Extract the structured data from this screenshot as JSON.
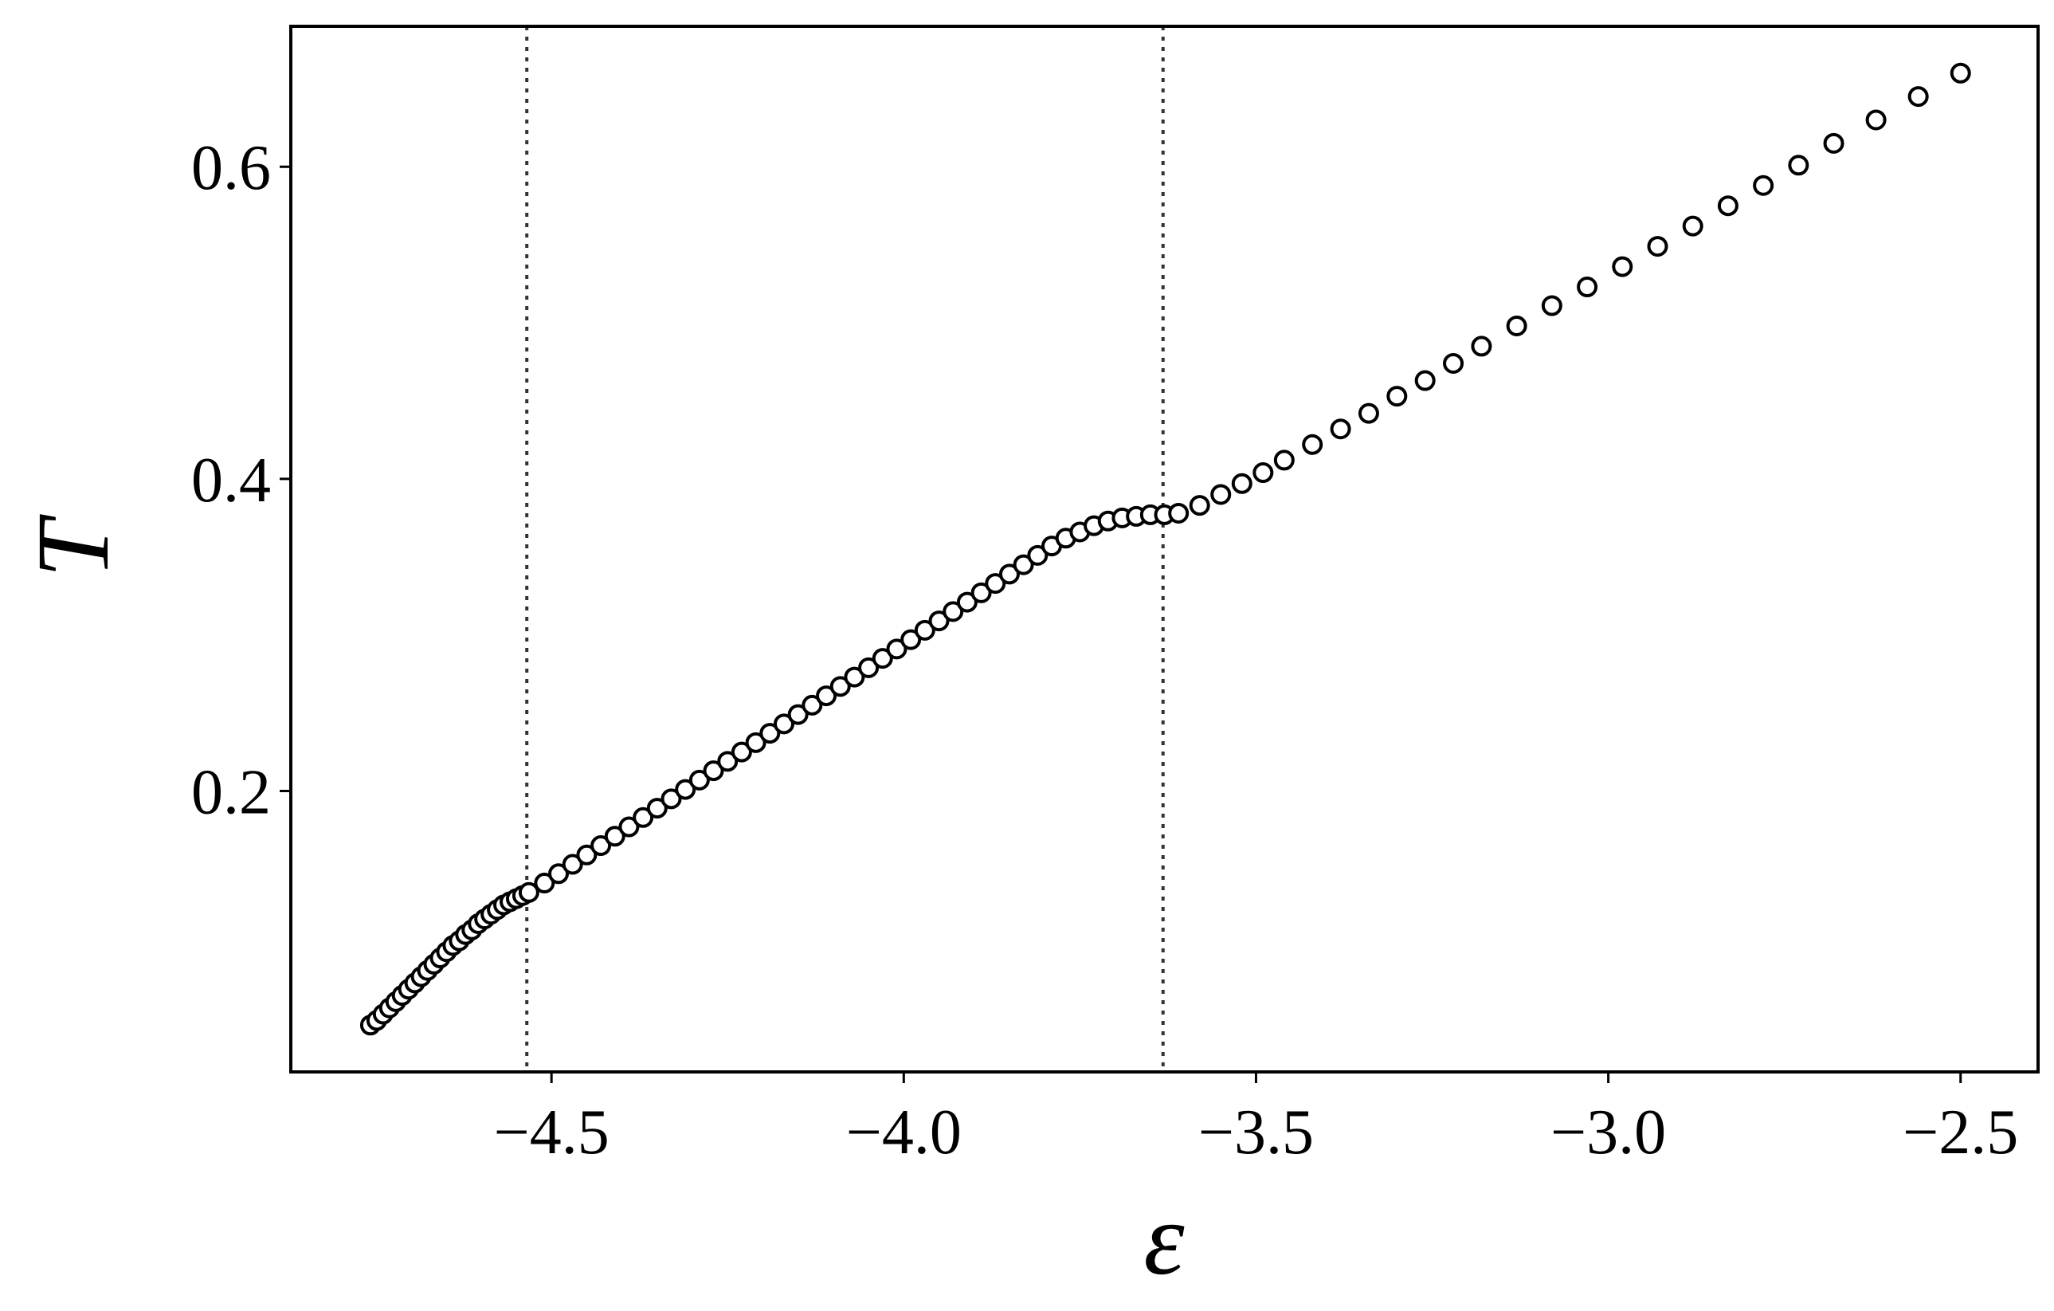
{
  "chart_data": {
    "type": "scatter",
    "title": "",
    "xlabel": "ε",
    "ylabel": "T",
    "xlim": [
      -4.87,
      -2.39
    ],
    "ylim": [
      0.02,
      0.69
    ],
    "x_ticks": [
      {
        "value": -4.5,
        "label": "−4.5"
      },
      {
        "value": -4.0,
        "label": "−4.0"
      },
      {
        "value": -3.5,
        "label": "−3.5"
      },
      {
        "value": -3.0,
        "label": "−3.0"
      },
      {
        "value": -2.5,
        "label": "−2.5"
      }
    ],
    "y_ticks": [
      {
        "value": 0.2,
        "label": "0.2"
      },
      {
        "value": 0.4,
        "label": "0.4"
      },
      {
        "value": 0.6,
        "label": "0.6"
      }
    ],
    "vertical_lines": [
      -4.535,
      -3.632
    ],
    "grid": false,
    "legend": "none",
    "marker": "open-circle",
    "colors": {
      "marker_edge": "#000000",
      "marker_fill": "#ffffff",
      "reference_line": "#333333"
    },
    "series": [
      {
        "x": [
          -4.757,
          -4.748,
          -4.739,
          -4.73,
          -4.721,
          -4.712,
          -4.703,
          -4.694,
          -4.685,
          -4.676,
          -4.667,
          -4.658,
          -4.649,
          -4.64,
          -4.631,
          -4.622,
          -4.613,
          -4.604,
          -4.595,
          -4.586,
          -4.577,
          -4.568,
          -4.559,
          -4.55,
          -4.541,
          -4.532,
          -4.51,
          -4.49,
          -4.47,
          -4.45,
          -4.43,
          -4.41,
          -4.39,
          -4.37,
          -4.35,
          -4.33,
          -4.31,
          -4.29,
          -4.27,
          -4.25,
          -4.23,
          -4.21,
          -4.19,
          -4.17,
          -4.15,
          -4.13,
          -4.11,
          -4.09,
          -4.07,
          -4.05,
          -4.03,
          -4.01,
          -3.99,
          -3.97,
          -3.95,
          -3.93,
          -3.91,
          -3.89,
          -3.87,
          -3.85,
          -3.83,
          -3.81,
          -3.79,
          -3.77,
          -3.75,
          -3.73,
          -3.71,
          -3.69,
          -3.67,
          -3.65,
          -3.63,
          -3.61,
          -3.58,
          -3.55,
          -3.52,
          -3.49,
          -3.46,
          -3.42,
          -3.38,
          -3.34,
          -3.3,
          -3.26,
          -3.22,
          -3.18,
          -3.13,
          -3.08,
          -3.03,
          -2.98,
          -2.93,
          -2.88,
          -2.83,
          -2.78,
          -2.73,
          -2.68,
          -2.62,
          -2.56,
          -2.5
        ],
        "y": [
          0.05,
          0.053,
          0.057,
          0.061,
          0.065,
          0.069,
          0.073,
          0.077,
          0.081,
          0.085,
          0.089,
          0.093,
          0.097,
          0.101,
          0.104,
          0.108,
          0.111,
          0.115,
          0.118,
          0.121,
          0.124,
          0.127,
          0.129,
          0.131,
          0.133,
          0.135,
          0.141,
          0.147,
          0.153,
          0.159,
          0.165,
          0.171,
          0.177,
          0.183,
          0.189,
          0.195,
          0.201,
          0.207,
          0.213,
          0.219,
          0.225,
          0.231,
          0.237,
          0.243,
          0.249,
          0.255,
          0.261,
          0.267,
          0.273,
          0.279,
          0.285,
          0.291,
          0.297,
          0.303,
          0.309,
          0.315,
          0.321,
          0.327,
          0.333,
          0.339,
          0.345,
          0.351,
          0.357,
          0.362,
          0.366,
          0.37,
          0.373,
          0.375,
          0.376,
          0.377,
          0.377,
          0.378,
          0.383,
          0.39,
          0.397,
          0.404,
          0.412,
          0.422,
          0.432,
          0.442,
          0.453,
          0.463,
          0.474,
          0.485,
          0.498,
          0.511,
          0.523,
          0.536,
          0.549,
          0.562,
          0.575,
          0.588,
          0.601,
          0.615,
          0.63,
          0.645,
          0.66
        ]
      }
    ]
  }
}
